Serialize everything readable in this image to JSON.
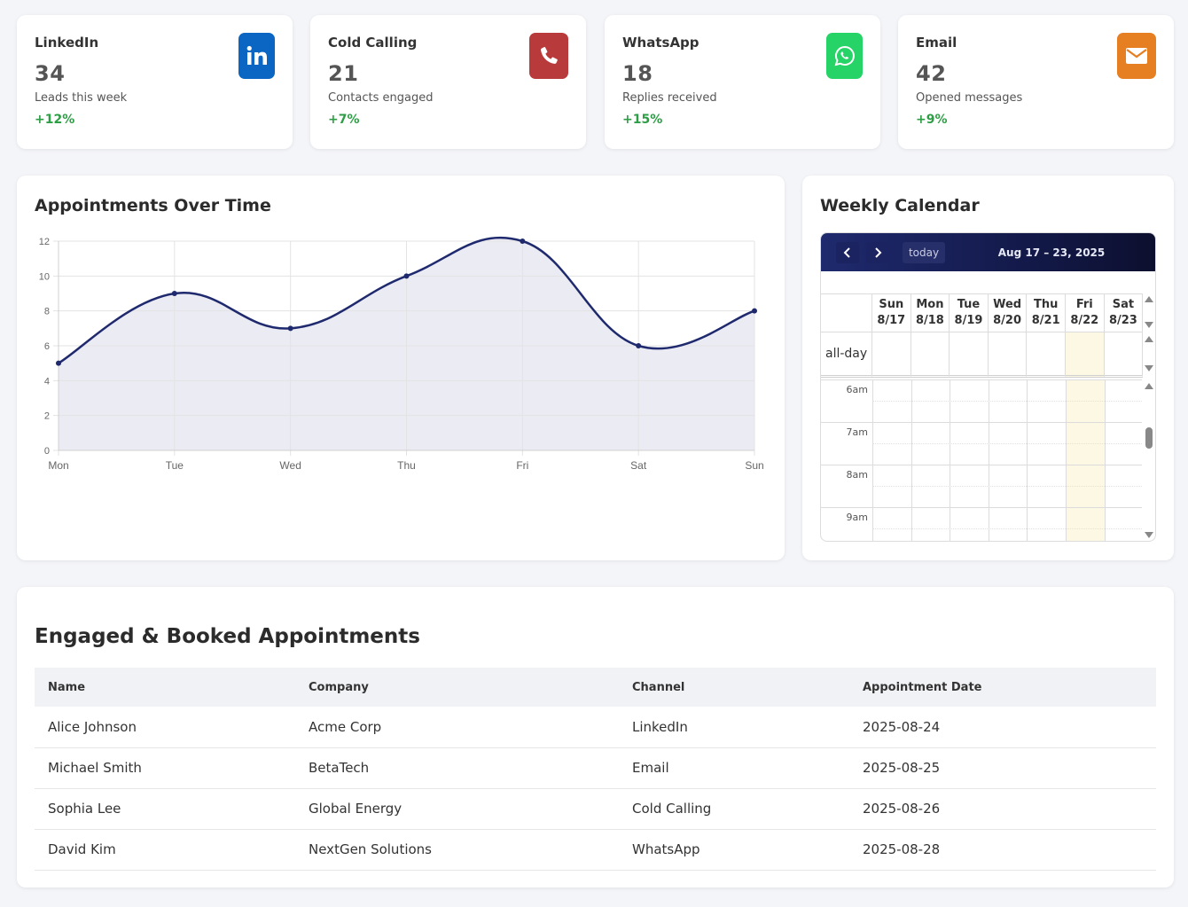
{
  "stats": [
    {
      "title": "LinkedIn",
      "value": "34",
      "subtitle": "Leads this week",
      "change": "+12%",
      "icon": "linkedin-icon",
      "color": "#0a66c2"
    },
    {
      "title": "Cold Calling",
      "value": "21",
      "subtitle": "Contacts engaged",
      "change": "+7%",
      "icon": "phone-icon",
      "color": "#c0392b"
    },
    {
      "title": "WhatsApp",
      "value": "18",
      "subtitle": "Replies received",
      "change": "+15%",
      "icon": "whatsapp-icon",
      "color": "#25d366"
    },
    {
      "title": "Email",
      "value": "42",
      "subtitle": "Opened messages",
      "change": "+9%",
      "icon": "envelope-icon",
      "color": "#e67e22"
    }
  ],
  "chart": {
    "title": "Appointments Over Time"
  },
  "chart_data": {
    "type": "area",
    "categories": [
      "Mon",
      "Tue",
      "Wed",
      "Thu",
      "Fri",
      "Sat",
      "Sun"
    ],
    "series": [
      {
        "values": [
          5,
          9,
          7,
          10,
          12,
          6,
          8
        ]
      }
    ],
    "ylim": [
      0,
      12
    ],
    "yticks": [
      "0",
      "2",
      "4",
      "6",
      "8",
      "10",
      "12"
    ],
    "line_color": "#1f2a6e",
    "fill_color": "#e8e8f2",
    "grid": true
  },
  "calendar": {
    "title": "Weekly Calendar",
    "today_label": "today",
    "range": "Aug 17 – 23, 2025",
    "days": [
      {
        "dow": "Sun",
        "date": "8/17"
      },
      {
        "dow": "Mon",
        "date": "8/18"
      },
      {
        "dow": "Tue",
        "date": "8/19"
      },
      {
        "dow": "Wed",
        "date": "8/20"
      },
      {
        "dow": "Thu",
        "date": "8/21"
      },
      {
        "dow": "Fri",
        "date": "8/22"
      },
      {
        "dow": "Sat",
        "date": "8/23"
      }
    ],
    "today_index": 5,
    "allday_label": "all-day",
    "times": [
      "6am",
      "7am",
      "8am",
      "9am"
    ]
  },
  "appointments": {
    "title": "Engaged & Booked Appointments",
    "columns": [
      "Name",
      "Company",
      "Channel",
      "Appointment Date"
    ],
    "rows": [
      [
        "Alice Johnson",
        "Acme Corp",
        "LinkedIn",
        "2025-08-24"
      ],
      [
        "Michael Smith",
        "BetaTech",
        "Email",
        "2025-08-25"
      ],
      [
        "Sophia Lee",
        "Global Energy",
        "Cold Calling",
        "2025-08-26"
      ],
      [
        "David Kim",
        "NextGen Solutions",
        "WhatsApp",
        "2025-08-28"
      ]
    ]
  }
}
